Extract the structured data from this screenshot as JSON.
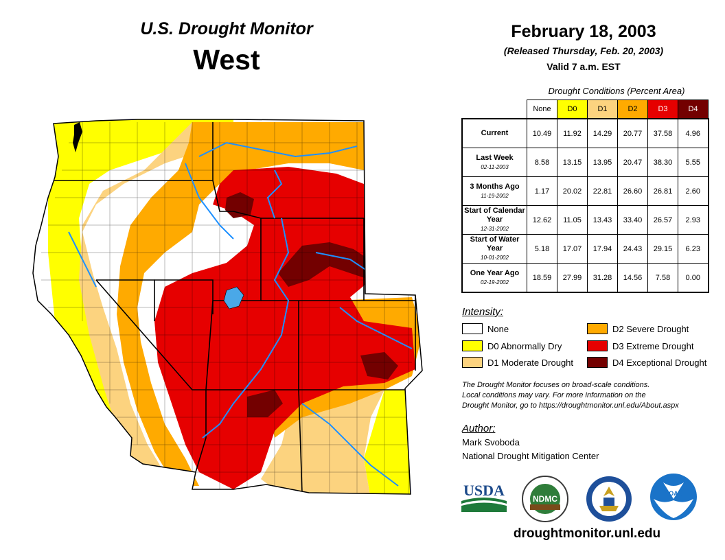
{
  "header": {
    "title": "U.S. Drought Monitor",
    "region": "West",
    "date": "February 18, 2003",
    "released": "(Released Thursday, Feb. 20, 2003)",
    "valid": "Valid 7 a.m. EST"
  },
  "table": {
    "caption": "Drought Conditions (Percent Area)",
    "columns": [
      "None",
      "D0",
      "D1",
      "D2",
      "D3",
      "D4"
    ],
    "column_colors": [
      "#ffffff",
      "#ffff00",
      "#fcd37f",
      "#ffaa00",
      "#e60000",
      "#730000"
    ],
    "rows": [
      {
        "label": "Current",
        "sub": "",
        "values": [
          "10.49",
          "11.92",
          "14.29",
          "20.77",
          "37.58",
          "4.96"
        ]
      },
      {
        "label": "Last Week",
        "sub": "02-11-2003",
        "values": [
          "8.58",
          "13.15",
          "13.95",
          "20.47",
          "38.30",
          "5.55"
        ]
      },
      {
        "label": "3 Months Ago",
        "sub": "11-19-2002",
        "values": [
          "1.17",
          "20.02",
          "22.81",
          "26.60",
          "26.81",
          "2.60"
        ]
      },
      {
        "label": "Start of Calendar Year",
        "sub": "12-31-2002",
        "values": [
          "12.62",
          "11.05",
          "13.43",
          "33.40",
          "26.57",
          "2.93"
        ]
      },
      {
        "label": "Start of Water Year",
        "sub": "10-01-2002",
        "values": [
          "5.18",
          "17.07",
          "17.94",
          "24.43",
          "29.15",
          "6.23"
        ]
      },
      {
        "label": "One Year Ago",
        "sub": "02-19-2002",
        "values": [
          "18.59",
          "27.99",
          "31.28",
          "14.56",
          "7.58",
          "0.00"
        ]
      }
    ]
  },
  "legend": {
    "title": "Intensity:",
    "items": [
      {
        "label": "None",
        "color": "#ffffff"
      },
      {
        "label": "D0 Abnormally Dry",
        "color": "#ffff00"
      },
      {
        "label": "D1 Moderate Drought",
        "color": "#fcd37f"
      },
      {
        "label": "D2 Severe Drought",
        "color": "#ffaa00"
      },
      {
        "label": "D3 Extreme Drought",
        "color": "#e60000"
      },
      {
        "label": "D4 Exceptional Drought",
        "color": "#730000"
      }
    ]
  },
  "note": {
    "line1": "The Drought Monitor focuses on broad-scale conditions.",
    "line2": "Local conditions may vary. For more information on the",
    "line3": "Drought Monitor, go to https://droughtmonitor.unl.edu/About.aspx"
  },
  "author": {
    "label": "Author:",
    "name": "Mark Svoboda",
    "org": "National Drought Mitigation Center"
  },
  "logos": {
    "usda": "USDA",
    "ndmc": "NDMC",
    "noaa": "NOAA"
  },
  "website": "droughtmonitor.unl.edu",
  "colors": {
    "water": "#1e90ff",
    "lake": "#4aa8e8",
    "boundary": "#000000"
  }
}
